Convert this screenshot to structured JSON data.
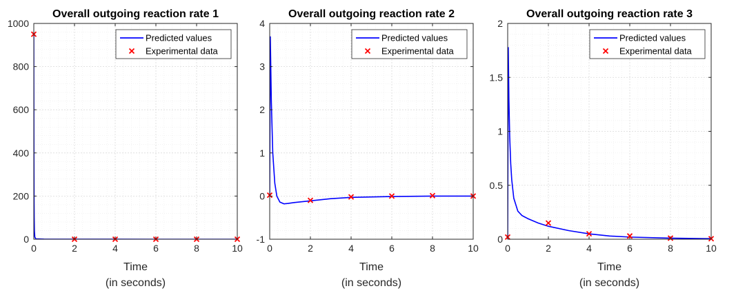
{
  "chart_data": [
    {
      "type": "line",
      "title": "Overall outgoing reaction rate 1",
      "xlabel_line1": "Time",
      "xlabel_line2": "(in seconds)",
      "ylabel": "",
      "xlim": [
        0,
        10
      ],
      "ylim": [
        0,
        1000
      ],
      "xticks": [
        0,
        2,
        4,
        6,
        8,
        10
      ],
      "yticks": [
        0,
        200,
        400,
        600,
        800,
        1000
      ],
      "grid": true,
      "minor_grid": true,
      "legend_position": "top-right",
      "series": [
        {
          "name": "Predicted values",
          "kind": "line",
          "color": "#0000ff",
          "x": [
            0,
            0.003,
            0.006,
            0.01,
            0.015,
            0.02,
            0.03,
            0.05,
            0.1,
            0.5,
            1,
            2,
            4,
            6,
            8,
            10
          ],
          "y": [
            950,
            700,
            480,
            300,
            170,
            100,
            40,
            10,
            2,
            0.5,
            0.2,
            0.1,
            0.05,
            0.02,
            0.01,
            0.01
          ]
        },
        {
          "name": "Experimental data",
          "kind": "marker",
          "marker": "x",
          "color": "#ff0000",
          "x": [
            0,
            2,
            4,
            6,
            8,
            10
          ],
          "y": [
            950,
            0,
            0,
            0,
            0,
            0
          ]
        }
      ]
    },
    {
      "type": "line",
      "title": "Overall outgoing reaction rate 2",
      "xlabel_line1": "Time",
      "xlabel_line2": "(in seconds)",
      "ylabel": "",
      "xlim": [
        0,
        10
      ],
      "ylim": [
        -1,
        4
      ],
      "xticks": [
        0,
        2,
        4,
        6,
        8,
        10
      ],
      "yticks": [
        -1,
        0,
        1,
        2,
        3,
        4
      ],
      "grid": true,
      "minor_grid": true,
      "legend_position": "top-right",
      "series": [
        {
          "name": "Predicted values",
          "kind": "line",
          "color": "#0000ff",
          "x": [
            0,
            0.03,
            0.08,
            0.15,
            0.25,
            0.35,
            0.5,
            0.7,
            0.9,
            1.2,
            1.6,
            2,
            3,
            4,
            5,
            6,
            8,
            10
          ],
          "y": [
            0,
            3.7,
            2.2,
            1.0,
            0.3,
            0.0,
            -0.14,
            -0.18,
            -0.17,
            -0.15,
            -0.13,
            -0.11,
            -0.06,
            -0.03,
            -0.02,
            -0.01,
            0,
            0
          ],
          "y_start_at_zero": true
        },
        {
          "name": "Experimental data",
          "kind": "marker",
          "marker": "x",
          "color": "#ff0000",
          "x": [
            0,
            2,
            4,
            6,
            8,
            10
          ],
          "y": [
            0.02,
            -0.1,
            -0.02,
            0,
            0.01,
            0
          ]
        }
      ]
    },
    {
      "type": "line",
      "title": "Overall outgoing reaction rate 3",
      "xlabel_line1": "Time",
      "xlabel_line2": "(in seconds)",
      "ylabel": "",
      "xlim": [
        0,
        10
      ],
      "ylim": [
        0,
        2
      ],
      "xticks": [
        0,
        2,
        4,
        6,
        8,
        10
      ],
      "yticks": [
        0,
        0.5,
        1,
        1.5,
        2
      ],
      "grid": true,
      "minor_grid": true,
      "legend_position": "top-right",
      "series": [
        {
          "name": "Predicted values",
          "kind": "line",
          "color": "#0000ff",
          "x": [
            0,
            0.03,
            0.06,
            0.1,
            0.15,
            0.2,
            0.3,
            0.5,
            0.7,
            1,
            1.5,
            2,
            3,
            4,
            5,
            6,
            8,
            10
          ],
          "y": [
            0,
            1.78,
            1.3,
            0.95,
            0.7,
            0.55,
            0.38,
            0.26,
            0.22,
            0.19,
            0.15,
            0.12,
            0.08,
            0.05,
            0.03,
            0.02,
            0.01,
            0.005
          ]
        },
        {
          "name": "Experimental data",
          "kind": "marker",
          "marker": "x",
          "color": "#ff0000",
          "x": [
            0,
            2,
            4,
            6,
            8,
            10
          ],
          "y": [
            0.02,
            0.15,
            0.05,
            0.03,
            0.01,
            0.005
          ]
        }
      ]
    }
  ]
}
